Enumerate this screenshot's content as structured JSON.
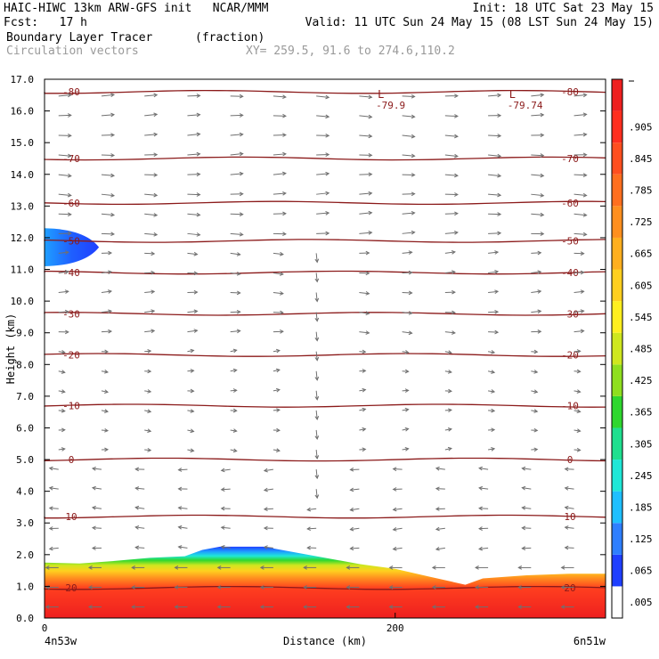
{
  "header": {
    "model_line": "HAIC-HIWC 13km ARW-GFS init   NCAR/MMM",
    "init_line": "Init: 18 UTC Sat 23 May 15",
    "fcst_line": "Fcst:   17 h",
    "valid_line": "Valid: 11 UTC Sun 24 May 15 (08 LST Sun 24 May 15)",
    "field_line": "Boundary Layer Tracer",
    "units_line": "(fraction)",
    "vector_line": "Circulation vectors",
    "xy_line": "XY= 259.5, 91.6 to 274.6,110.2"
  },
  "chart_data": {
    "type": "heatmap",
    "title": "Boundary Layer Tracer",
    "units": "(fraction)",
    "xlabel": "Distance (km)",
    "ylabel": "Height (km)",
    "xlim": [
      0,
      320
    ],
    "ylim": [
      0,
      17
    ],
    "x_ticks": [
      "0",
      "200"
    ],
    "x_end_labels": {
      "left": "4n53w",
      "right": "6n51w"
    },
    "y_ticks": [
      "0.0",
      "1.0",
      "2.0",
      "3.0",
      "4.0",
      "5.0",
      "6.0",
      "7.0",
      "8.0",
      "9.0",
      "10.0",
      "11.0",
      "12.0",
      "13.0",
      "14.0",
      "15.0",
      "16.0",
      "17.0"
    ],
    "colorbar": {
      "labels": [
        ".005",
        ".065",
        ".125",
        ".185",
        ".245",
        ".305",
        ".365",
        ".425",
        ".485",
        ".545",
        ".605",
        ".665",
        ".725",
        ".785",
        ".845",
        ".905"
      ],
      "colors": [
        "#ffffff",
        "#1f3fff",
        "#2f7fff",
        "#1fbfff",
        "#1fe7d7",
        "#1fdf8f",
        "#2fd72f",
        "#8fdf1f",
        "#cfe71f",
        "#ffef1f",
        "#ffcf1f",
        "#ffaf1f",
        "#ff8f1f",
        "#ff6f1f",
        "#ff4f1f",
        "#ff2f1f",
        "#ee1f1f"
      ]
    },
    "tracer_top_km": [
      [
        0,
        1.75
      ],
      [
        20,
        1.72
      ],
      [
        40,
        1.8
      ],
      [
        60,
        1.9
      ],
      [
        80,
        1.95
      ],
      [
        90,
        2.15
      ],
      [
        100,
        2.25
      ],
      [
        125,
        2.25
      ],
      [
        140,
        2.1
      ],
      [
        160,
        1.9
      ],
      [
        180,
        1.7
      ],
      [
        200,
        1.55
      ],
      [
        220,
        1.3
      ],
      [
        240,
        1.05
      ],
      [
        250,
        1.25
      ],
      [
        275,
        1.35
      ],
      [
        300,
        1.4
      ],
      [
        320,
        1.4
      ]
    ],
    "upper_tracer_blob": {
      "x_range": [
        0,
        28
      ],
      "center_km": 11.7,
      "half_depth_km": 0.6
    },
    "temperature_contours": [
      {
        "label": "20",
        "y_km": 0.95
      },
      {
        "label": "10",
        "y_km": 3.2
      },
      {
        "label": "0",
        "y_km": 5.0
      },
      {
        "label": "-10",
        "y_km": 6.7
      },
      {
        "label": "-20",
        "y_km": 8.3
      },
      {
        "label": "-30",
        "y_km": 9.6
      },
      {
        "label": "-40",
        "y_km": 10.9
      },
      {
        "label": "-50",
        "y_km": 11.9
      },
      {
        "label": "-60",
        "y_km": 13.1
      },
      {
        "label": "-70",
        "y_km": 14.5
      },
      {
        "label": "-80",
        "y_km": 16.6
      }
    ],
    "lows": [
      {
        "symbol": "L",
        "value": "-79.9",
        "x": 190,
        "y_km": 16.3
      },
      {
        "symbol": "L",
        "value": "-79.74",
        "x": 265,
        "y_km": 16.3
      }
    ],
    "vectors": "Circulation vectors"
  }
}
